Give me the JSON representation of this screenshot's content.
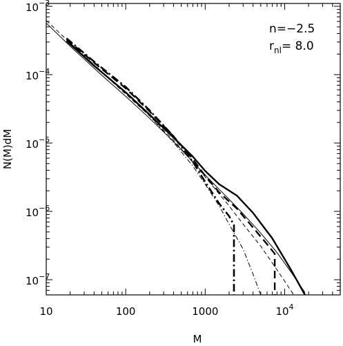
{
  "chart_data": {
    "type": "line",
    "xlabel": "M",
    "ylabel": "N(M)dM",
    "x_scale": "log",
    "y_scale": "log",
    "xlim": [
      10,
      50000
    ],
    "ylim": [
      6e-08,
      0.0011
    ],
    "x_ticks": [
      {
        "value": 10,
        "label": "10"
      },
      {
        "value": 100,
        "label": "100"
      },
      {
        "value": 1000,
        "label": "1000"
      },
      {
        "value": 10000,
        "base": "10",
        "exp": "4"
      }
    ],
    "y_ticks": [
      {
        "value": 0.001,
        "base": "10",
        "exp": "−3"
      },
      {
        "value": 0.0001,
        "base": "10",
        "exp": "−4"
      },
      {
        "value": 1e-05,
        "base": "10",
        "exp": "−5"
      },
      {
        "value": 1e-06,
        "base": "10",
        "exp": "−6"
      },
      {
        "value": 1e-07,
        "base": "10",
        "exp": "−7"
      }
    ],
    "annotation": {
      "line1": "n=−2.5",
      "line2_main": "r",
      "line2_sub": "nl",
      "line2_rest": "=  8.0"
    },
    "series": [
      {
        "style": "thin-solid",
        "points": [
          [
            10,
            0.00057
          ],
          [
            20,
            0.00026
          ],
          [
            50,
            9.8e-05
          ],
          [
            100,
            4.8e-05
          ],
          [
            200,
            2.3e-05
          ],
          [
            400,
            1.05e-05
          ],
          [
            700,
            5.3e-06
          ],
          [
            1000,
            3.4e-06
          ],
          [
            1500,
            2.1e-06
          ],
          [
            2000,
            1.5e-06
          ],
          [
            3000,
            9.2e-07
          ],
          [
            5000,
            4.8e-07
          ],
          [
            8000,
            2.5e-07
          ],
          [
            12000,
            1.3e-07
          ],
          [
            18000,
            6.5e-08
          ]
        ]
      },
      {
        "style": "thin-dashed",
        "points": [
          [
            10,
            0.00062
          ],
          [
            20,
            0.00029
          ],
          [
            50,
            0.000108
          ],
          [
            100,
            5.2e-05
          ],
          [
            200,
            2.5e-05
          ],
          [
            400,
            1.1e-05
          ],
          [
            700,
            5.2e-06
          ],
          [
            1000,
            3.2e-06
          ],
          [
            1500,
            1.8e-06
          ],
          [
            2000,
            1.2e-06
          ],
          [
            3000,
            6.5e-07
          ],
          [
            5000,
            3.1e-07
          ],
          [
            8000,
            1.4e-07
          ],
          [
            10000,
            9.5e-08
          ],
          [
            13000,
            6e-08
          ]
        ]
      },
      {
        "style": "thin-dash-dot",
        "points": [
          [
            18,
            0.00032
          ],
          [
            40,
            0.00014
          ],
          [
            100,
            5.4e-05
          ],
          [
            200,
            2.5e-05
          ],
          [
            400,
            1.02e-05
          ],
          [
            700,
            4.6e-06
          ],
          [
            1000,
            2.5e-06
          ],
          [
            1500,
            1.2e-06
          ],
          [
            2000,
            6.5e-07
          ],
          [
            3000,
            2.8e-07
          ],
          [
            4000,
            1.2e-07
          ],
          [
            5000,
            6e-08
          ]
        ]
      },
      {
        "style": "thick-solid",
        "points": [
          [
            18,
            0.00031
          ],
          [
            40,
            0.000135
          ],
          [
            100,
            5.5e-05
          ],
          [
            200,
            2.6e-05
          ],
          [
            400,
            1.2e-05
          ],
          [
            700,
            6.3e-06
          ],
          [
            1000,
            3.9e-06
          ],
          [
            1500,
            2.5e-06
          ],
          [
            2500,
            1.7e-06
          ],
          [
            4000,
            9.5e-07
          ],
          [
            7000,
            4e-07
          ],
          [
            12000,
            1.4e-07
          ],
          [
            18000,
            6e-08
          ]
        ]
      },
      {
        "style": "thick-dashed",
        "points": [
          [
            18,
            0.00033
          ],
          [
            40,
            0.00015
          ],
          [
            100,
            6.3e-05
          ],
          [
            200,
            2.9e-05
          ],
          [
            400,
            1.25e-05
          ],
          [
            700,
            5.8e-06
          ],
          [
            1000,
            3.3e-06
          ],
          [
            1500,
            1.9e-06
          ],
          [
            2500,
            1.1e-06
          ],
          [
            4000,
            5.8e-07
          ],
          [
            6000,
            3.3e-07
          ],
          [
            7500,
            2.4e-07
          ],
          [
            7500,
            6e-08
          ]
        ]
      },
      {
        "style": "thick-dash-dot",
        "points": [
          [
            18,
            0.00034
          ],
          [
            40,
            0.000155
          ],
          [
            100,
            6.6e-05
          ],
          [
            200,
            3e-05
          ],
          [
            400,
            1.25e-05
          ],
          [
            700,
            5.3e-06
          ],
          [
            1000,
            2.7e-06
          ],
          [
            1500,
            1.3e-06
          ],
          [
            2000,
            8.5e-07
          ],
          [
            2300,
            6.3e-07
          ],
          [
            2300,
            6e-08
          ]
        ]
      }
    ]
  }
}
